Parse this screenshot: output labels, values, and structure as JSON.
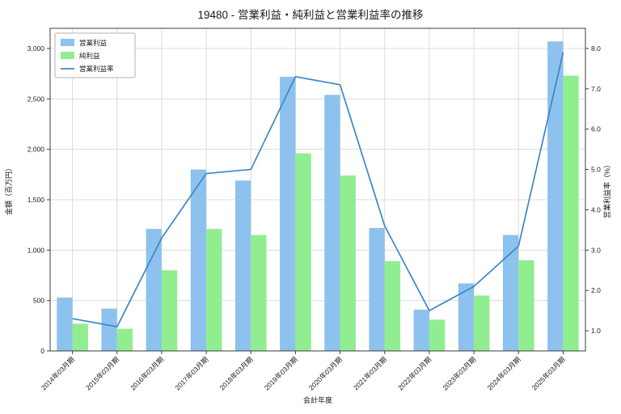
{
  "chart_data": {
    "type": "bar+line",
    "title": "19480 - 営業利益・純利益と営業利益率の推移",
    "xlabel": "会計年度",
    "ylabel_left": "金額（百万円）",
    "ylabel_right": "営業利益率（%）",
    "legend_position": "upper-left",
    "grid": true,
    "categories": [
      "2014年03月期",
      "2015年03月期",
      "2016年03月期",
      "2017年03月期",
      "2018年03月期",
      "2019年03月期",
      "2020年03月期",
      "2021年03月期",
      "2022年03月期",
      "2023年03月期",
      "2024年03月期",
      "2025年03月期"
    ],
    "series": [
      {
        "name": "営業利益",
        "type": "bar",
        "axis": "left",
        "color": "#8ec2ee",
        "values": [
          530,
          420,
          1210,
          1800,
          1690,
          2720,
          2540,
          1220,
          410,
          670,
          1150,
          3070
        ]
      },
      {
        "name": "純利益",
        "type": "bar",
        "axis": "left",
        "color": "#90ee90",
        "values": [
          270,
          220,
          800,
          1210,
          1150,
          1960,
          1740,
          890,
          310,
          550,
          900,
          2730
        ]
      },
      {
        "name": "営業利益率",
        "type": "line",
        "axis": "right",
        "color": "#3c87c4",
        "values": [
          1.3,
          1.1,
          3.3,
          4.9,
          5.0,
          7.3,
          7.1,
          3.6,
          1.5,
          2.1,
          3.1,
          7.9
        ]
      }
    ],
    "left_axis": {
      "min": 0,
      "max": 3200,
      "tick_values": [
        0,
        500,
        1000,
        1500,
        2000,
        2500,
        3000
      ],
      "tick_labels": [
        "0",
        "500",
        "1,000",
        "1,500",
        "2,000",
        "2,500",
        "3,000"
      ]
    },
    "right_axis": {
      "min": 0.5,
      "max": 8.5,
      "tick_values": [
        1,
        2,
        3,
        4,
        5,
        6,
        7,
        8
      ],
      "tick_labels": [
        "1.0",
        "2.0",
        "3.0",
        "4.0",
        "5.0",
        "6.0",
        "7.0",
        "8.0"
      ]
    },
    "colors": {
      "grid": "#dcdcdc",
      "spine": "#3c3c3c",
      "legend_border": "#b3b3b3"
    }
  }
}
